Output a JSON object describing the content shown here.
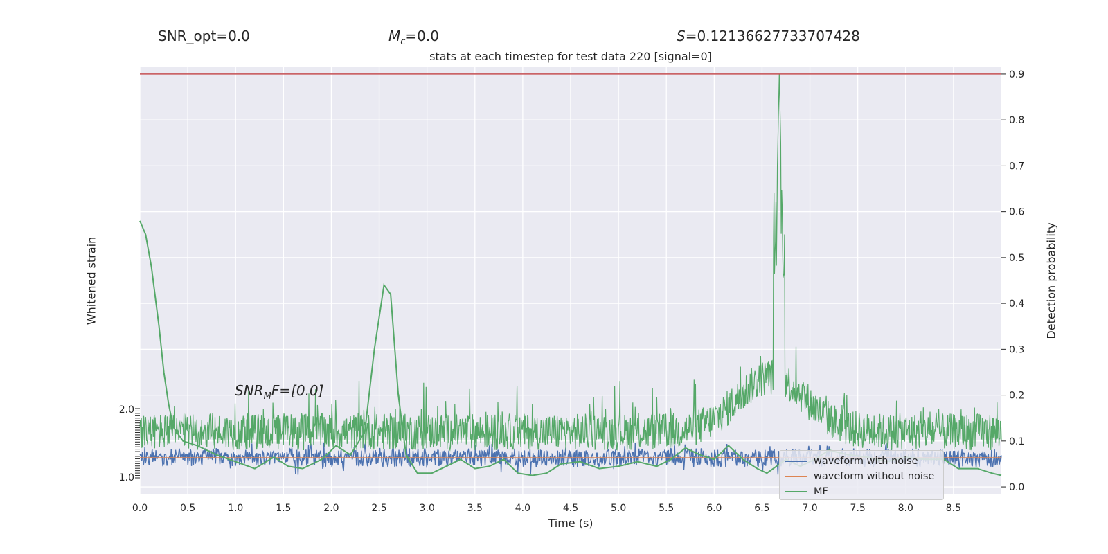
{
  "stats": {
    "snr_opt": "SNR_opt=0.0",
    "mc_symbol": "M",
    "mc_sub": "c",
    "mc_value": "=0.0",
    "s_symbol": "S",
    "s_value": "=0.12136627733707428"
  },
  "annotation": {
    "snr_mf_prefix": "SNR",
    "snr_mf_sub": "M",
    "snr_mf_suffix": "F=[0.0]"
  },
  "chart_data": {
    "type": "line",
    "title": "stats at each timestep for test data 220 [signal=0]",
    "xlabel": "Time (s)",
    "ylabel_left": "Whitened strain",
    "ylabel_right": "Detection probability",
    "xlim": [
      0.0,
      9.0
    ],
    "ylim_right": [
      -0.015,
      0.915
    ],
    "x_ticks": [
      "0.0",
      "0.5",
      "1.0",
      "1.5",
      "2.0",
      "2.5",
      "3.0",
      "3.5",
      "4.0",
      "4.5",
      "5.0",
      "5.5",
      "6.0",
      "6.5",
      "7.0",
      "7.5",
      "8.0",
      "8.5"
    ],
    "y_right_ticks": [
      "0.0",
      "0.1",
      "0.2",
      "0.3",
      "0.4",
      "0.5",
      "0.6",
      "0.7",
      "0.8",
      "0.9"
    ],
    "y_left_ticks_top": "2.0",
    "y_left_ticks_bottom": "1.0",
    "threshold": 0.9,
    "grid": true,
    "legend_position": "lower-right",
    "colors": {
      "background": "#eaeaf2",
      "grid": "#ffffff",
      "noise": "#4c72b0",
      "clean": "#dd8452",
      "detection": "#55a868",
      "threshold": "#c44e52",
      "text": "#262626"
    },
    "series": [
      {
        "name": "waveform with noise",
        "approx_range": [
          -0.4,
          0.4
        ]
      },
      {
        "name": "waveform without noise",
        "approx_value": 0.0
      },
      {
        "name": "MF",
        "note": "green smooth curve",
        "points": [
          [
            0.0,
            0.58
          ],
          [
            0.06,
            0.55
          ],
          [
            0.12,
            0.48
          ],
          [
            0.2,
            0.35
          ],
          [
            0.25,
            0.25
          ],
          [
            0.3,
            0.18
          ],
          [
            0.35,
            0.13
          ],
          [
            0.45,
            0.1
          ],
          [
            0.6,
            0.09
          ],
          [
            0.8,
            0.07
          ],
          [
            1.0,
            0.055
          ],
          [
            1.2,
            0.04
          ],
          [
            1.4,
            0.065
          ],
          [
            1.55,
            0.045
          ],
          [
            1.7,
            0.04
          ],
          [
            1.9,
            0.06
          ],
          [
            2.05,
            0.09
          ],
          [
            2.2,
            0.07
          ],
          [
            2.35,
            0.12
          ],
          [
            2.45,
            0.3
          ],
          [
            2.55,
            0.44
          ],
          [
            2.62,
            0.42
          ],
          [
            2.7,
            0.2
          ],
          [
            2.78,
            0.07
          ],
          [
            2.9,
            0.03
          ],
          [
            3.05,
            0.03
          ],
          [
            3.2,
            0.045
          ],
          [
            3.35,
            0.06
          ],
          [
            3.5,
            0.04
          ],
          [
            3.65,
            0.045
          ],
          [
            3.8,
            0.06
          ],
          [
            3.95,
            0.03
          ],
          [
            4.1,
            0.025
          ],
          [
            4.25,
            0.03
          ],
          [
            4.4,
            0.05
          ],
          [
            4.6,
            0.055
          ],
          [
            4.8,
            0.04
          ],
          [
            5.0,
            0.045
          ],
          [
            5.2,
            0.055
          ],
          [
            5.4,
            0.045
          ],
          [
            5.55,
            0.06
          ],
          [
            5.7,
            0.085
          ],
          [
            5.85,
            0.07
          ],
          [
            6.0,
            0.06
          ],
          [
            6.15,
            0.09
          ],
          [
            6.3,
            0.06
          ],
          [
            6.45,
            0.04
          ],
          [
            6.55,
            0.03
          ],
          [
            6.65,
            0.045
          ],
          [
            6.75,
            0.06
          ],
          [
            6.9,
            0.045
          ],
          [
            7.05,
            0.06
          ],
          [
            7.2,
            0.08
          ],
          [
            7.4,
            0.07
          ],
          [
            7.6,
            0.065
          ],
          [
            7.8,
            0.055
          ],
          [
            8.0,
            0.065
          ],
          [
            8.2,
            0.06
          ],
          [
            8.4,
            0.06
          ],
          [
            8.55,
            0.04
          ],
          [
            8.75,
            0.04
          ],
          [
            8.9,
            0.03
          ],
          [
            9.0,
            0.025
          ]
        ]
      },
      {
        "name": "Detection probability (green noisy)",
        "base_level": 0.12,
        "peak": {
          "x": 6.68,
          "y": 0.9
        }
      }
    ]
  }
}
